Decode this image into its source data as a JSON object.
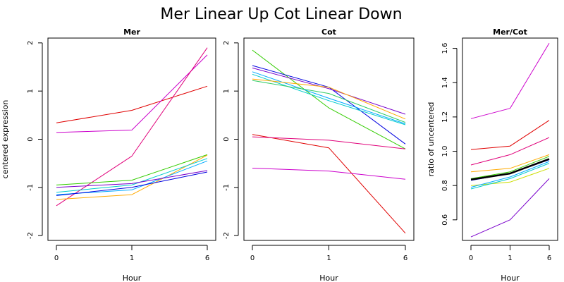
{
  "page_title": "Mer Linear Up Cot Linear Down",
  "chart_data": [
    {
      "type": "line",
      "title": "Mer",
      "xlabel": "Hour",
      "ylabel": "centered expression",
      "x": [
        "0",
        "1",
        "6"
      ],
      "ylim": [
        -2.1,
        2.1
      ],
      "yticks": [
        -2,
        -1,
        0,
        1,
        2
      ],
      "yticklabels": [
        "-2",
        "-1",
        "0",
        "1",
        "2"
      ],
      "series": [
        {
          "color": "#e00000",
          "values": [
            0.34,
            0.6,
            1.1
          ]
        },
        {
          "color": "#cc00cc",
          "values": [
            0.14,
            0.19,
            1.75
          ]
        },
        {
          "color": "#e0007a",
          "values": [
            -1.38,
            -0.35,
            1.9
          ]
        },
        {
          "color": "#33cc00",
          "values": [
            -0.95,
            -0.85,
            -0.32
          ]
        },
        {
          "color": "#ffaa00",
          "values": [
            -1.25,
            -1.15,
            -0.33
          ]
        },
        {
          "color": "#00cccc",
          "values": [
            -1.1,
            -0.95,
            -0.4
          ]
        },
        {
          "color": "#00aaff",
          "values": [
            -1.15,
            -1.05,
            -0.45
          ]
        },
        {
          "color": "#0000e0",
          "values": [
            -1.17,
            -1.0,
            -0.68
          ]
        },
        {
          "color": "#7a00cc",
          "values": [
            -1.0,
            -0.92,
            -0.65
          ]
        }
      ]
    },
    {
      "type": "line",
      "title": "Cot",
      "xlabel": "Hour",
      "ylabel": "",
      "x": [
        "0",
        "1",
        "6"
      ],
      "ylim": [
        -2.1,
        2.1
      ],
      "yticks": [
        -2,
        -1,
        0,
        1,
        2
      ],
      "yticklabels": [
        "-2",
        "-1",
        "0",
        "1",
        "2"
      ],
      "series": [
        {
          "color": "#33cc00",
          "values": [
            1.85,
            0.65,
            -0.2
          ]
        },
        {
          "color": "#0000e0",
          "values": [
            1.53,
            1.08,
            -0.1
          ]
        },
        {
          "color": "#7a00cc",
          "values": [
            1.48,
            1.05,
            0.52
          ]
        },
        {
          "color": "#00aaff",
          "values": [
            1.4,
            0.85,
            0.32
          ]
        },
        {
          "color": "#00cccc",
          "values": [
            1.35,
            0.8,
            0.3
          ]
        },
        {
          "color": "#ffaa00",
          "values": [
            1.25,
            1.08,
            0.42
          ]
        },
        {
          "color": "#33cc66",
          "values": [
            1.22,
            0.95,
            0.35
          ]
        },
        {
          "color": "#e00000",
          "values": [
            0.1,
            -0.18,
            -1.95
          ]
        },
        {
          "color": "#e0007a",
          "values": [
            0.05,
            -0.02,
            -0.2
          ]
        },
        {
          "color": "#cc00cc",
          "values": [
            -0.6,
            -0.66,
            -0.83
          ]
        }
      ]
    },
    {
      "type": "line",
      "title": "Mer/Cot",
      "xlabel": "Hour",
      "ylabel": "ratio of uncentered",
      "x": [
        "0",
        "1",
        "6"
      ],
      "ylim": [
        0.48,
        1.66
      ],
      "yticks": [
        0.6,
        0.8,
        1.0,
        1.2,
        1.4,
        1.6
      ],
      "yticklabels": [
        "0.6",
        "0.8",
        "1.0",
        "1.2",
        "1.4",
        "1.6"
      ],
      "series": [
        {
          "color": "#cc00cc",
          "values": [
            1.19,
            1.25,
            1.63
          ]
        },
        {
          "color": "#e00000",
          "values": [
            1.01,
            1.03,
            1.18
          ]
        },
        {
          "color": "#e0007a",
          "values": [
            0.92,
            0.98,
            1.08
          ]
        },
        {
          "color": "#ffaa00",
          "values": [
            0.88,
            0.9,
            0.98
          ]
        },
        {
          "color": "#ccdd00",
          "values": [
            0.8,
            0.82,
            0.9
          ]
        },
        {
          "color": "#33cc00",
          "values": [
            0.84,
            0.88,
            0.97
          ]
        },
        {
          "color": "#00cccc",
          "values": [
            0.78,
            0.84,
            0.93
          ]
        },
        {
          "color": "#00aaff",
          "values": [
            0.79,
            0.85,
            0.94
          ]
        },
        {
          "color": "#0000e0",
          "values": [
            0.83,
            0.87,
            0.95
          ]
        },
        {
          "color": "#000000",
          "width": 2.5,
          "values": [
            0.835,
            0.87,
            0.955
          ]
        },
        {
          "color": "#7a00cc",
          "values": [
            0.5,
            0.6,
            0.84
          ]
        }
      ]
    }
  ]
}
